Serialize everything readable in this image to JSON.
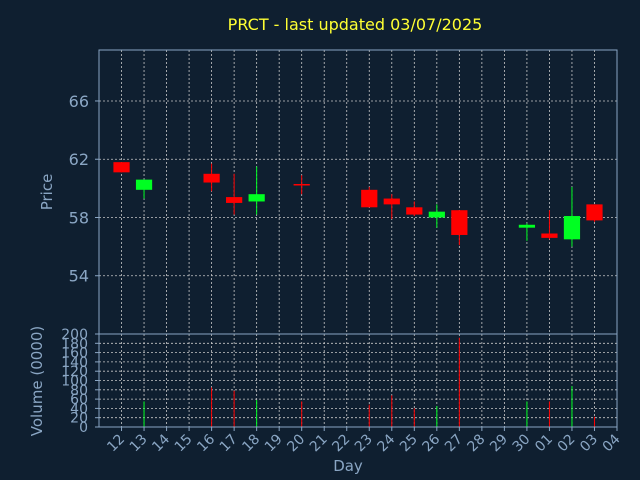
{
  "chart_data": {
    "type": "candlestick",
    "title": "PRCT - last updated 03/07/2025",
    "xlabel": "Day",
    "ylabel_price": "Price",
    "ylabel_volume": "Volume (0000)",
    "x_ticks": [
      "12",
      "13",
      "14",
      "15",
      "16",
      "17",
      "18",
      "19",
      "20",
      "21",
      "22",
      "23",
      "24",
      "25",
      "26",
      "27",
      "28",
      "29",
      "30",
      "01",
      "02",
      "03",
      "04"
    ],
    "price_ticks": [
      54,
      58,
      62,
      66
    ],
    "price_ylim": [
      50,
      69.5
    ],
    "volume_ticks": [
      0,
      20,
      40,
      60,
      80,
      100,
      120,
      140,
      160,
      180,
      200
    ],
    "volume_ylim": [
      0,
      200
    ],
    "grid": true,
    "colors": {
      "background": "#0f1f30",
      "axes": "#8aa6c4",
      "grid": "#c8c8c8",
      "title": "#ffff33",
      "up": "#00ff22",
      "down": "#ff0000"
    },
    "candles": [
      {
        "day": "12",
        "open": 61.8,
        "close": 61.1,
        "high": 61.8,
        "low": 61.1,
        "volume": 0
      },
      {
        "day": "13",
        "open": 59.9,
        "close": 60.6,
        "high": 60.6,
        "low": 59.3,
        "volume": 55
      },
      {
        "day": "16",
        "open": 61.0,
        "close": 60.4,
        "high": 61.7,
        "low": 59.8,
        "volume": 85
      },
      {
        "day": "17",
        "open": 59.4,
        "close": 59.0,
        "high": 61.0,
        "low": 58.2,
        "volume": 78
      },
      {
        "day": "18",
        "open": 59.1,
        "close": 59.6,
        "high": 61.5,
        "low": 58.2,
        "volume": 58
      },
      {
        "day": "20",
        "open": 60.3,
        "close": 60.2,
        "high": 60.9,
        "low": 59.6,
        "volume": 55
      },
      {
        "day": "23",
        "open": 59.9,
        "close": 58.7,
        "high": 60.1,
        "low": 58.7,
        "volume": 48
      },
      {
        "day": "24",
        "open": 59.3,
        "close": 58.9,
        "high": 59.6,
        "low": 57.9,
        "volume": 68
      },
      {
        "day": "25",
        "open": 58.7,
        "close": 58.2,
        "high": 59.1,
        "low": 58.1,
        "volume": 40
      },
      {
        "day": "26",
        "open": 58.0,
        "close": 58.4,
        "high": 58.9,
        "low": 57.3,
        "volume": 45
      },
      {
        "day": "27",
        "open": 58.5,
        "close": 56.8,
        "high": 58.5,
        "low": 56.1,
        "volume": 192
      },
      {
        "day": "30",
        "open": 57.3,
        "close": 57.5,
        "high": 57.6,
        "low": 56.4,
        "volume": 55
      },
      {
        "day": "01",
        "open": 56.9,
        "close": 56.6,
        "high": 58.5,
        "low": 56.5,
        "volume": 55
      },
      {
        "day": "02",
        "open": 56.5,
        "close": 58.1,
        "high": 60.1,
        "low": 56.0,
        "volume": 88
      },
      {
        "day": "03",
        "open": 58.9,
        "close": 57.8,
        "high": 58.9,
        "low": 57.7,
        "volume": 22
      }
    ]
  }
}
